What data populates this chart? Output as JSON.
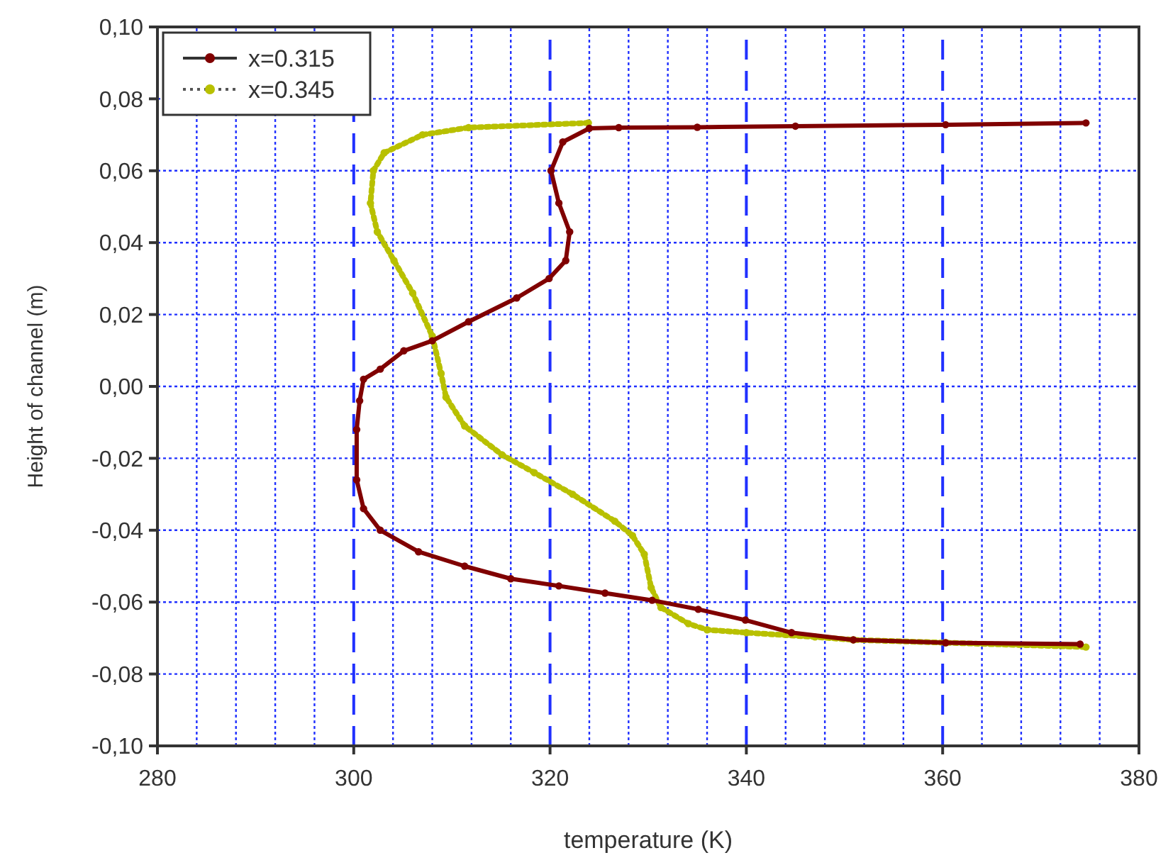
{
  "chart_data": {
    "type": "line",
    "xlabel": "temperature (K)",
    "ylabel": "Height of channel (m)",
    "xlim": [
      280,
      380
    ],
    "ylim": [
      -0.1,
      0.1
    ],
    "xticks": [
      280,
      {
        "value": 284,
        "label": null
      },
      {
        "value": 288,
        "label": null
      },
      {
        "value": 292,
        "label": null
      },
      {
        "value": 296,
        "label": null
      },
      300,
      {
        "value": 304,
        "label": null
      },
      {
        "value": 308,
        "label": null
      },
      {
        "value": 312,
        "label": null
      },
      {
        "value": 316,
        "label": null
      },
      320,
      {
        "value": 324,
        "label": null
      },
      {
        "value": 328,
        "label": null
      },
      {
        "value": 332,
        "label": null
      },
      {
        "value": 336,
        "label": null
      },
      340,
      {
        "value": 344,
        "label": null
      },
      {
        "value": 348,
        "label": null
      },
      {
        "value": 352,
        "label": null
      },
      {
        "value": 356,
        "label": null
      },
      360,
      {
        "value": 364,
        "label": null
      },
      {
        "value": 368,
        "label": null
      },
      {
        "value": 372,
        "label": null
      },
      {
        "value": 376,
        "label": null
      },
      380
    ],
    "yticks": [
      {
        "value": -0.1,
        "label": "-0,10"
      },
      {
        "value": -0.08,
        "label": "-0,08"
      },
      {
        "value": -0.06,
        "label": "-0,06"
      },
      {
        "value": -0.04,
        "label": "-0,04"
      },
      {
        "value": -0.02,
        "label": "-0,02"
      },
      {
        "value": 0,
        "label": "0,00"
      },
      {
        "value": 0.02,
        "label": "0,02"
      },
      {
        "value": 0.04,
        "label": "0,04"
      },
      {
        "value": 0.06,
        "label": "0,06"
      },
      {
        "value": 0.08,
        "label": "0,08"
      },
      {
        "value": 0.1,
        "label": "0,10"
      }
    ],
    "grid": true,
    "legend": "top left",
    "marker": "circle",
    "series": [
      {
        "name": "x=0.315",
        "color": "#800000",
        "line_style": "solid",
        "x": [
          374.6,
          360.3,
          345,
          335,
          327,
          324,
          321.3,
          320.1,
          320.9,
          322,
          321.6,
          319.9,
          316.6,
          311.7,
          308,
          305.1,
          302.7,
          301,
          300.6,
          300.3,
          300.3,
          301,
          302.7,
          306.6,
          311.3,
          316,
          320.9,
          325.6,
          330.4,
          335.1,
          339.9,
          344.6,
          350.9,
          360.3,
          374
        ],
        "values": [
          0.0733,
          0.0728,
          0.0724,
          0.0721,
          0.072,
          0.0718,
          0.068,
          0.06,
          0.051,
          0.043,
          0.035,
          0.03,
          0.0246,
          0.018,
          0.0127,
          0.0099,
          0.0048,
          0.002,
          -0.004,
          -0.012,
          -0.026,
          -0.034,
          -0.04,
          -0.046,
          -0.05,
          -0.0535,
          -0.0555,
          -0.0575,
          -0.0595,
          -0.062,
          -0.065,
          -0.0685,
          -0.0705,
          -0.0713,
          -0.0717
        ]
      },
      {
        "name": "x=0.345",
        "color": "#b8c000",
        "line_style": "dotted",
        "x": [
          323.9,
          311.7,
          307,
          303.1,
          302,
          301.7,
          302.4,
          304.1,
          306,
          308,
          308.9,
          309.4,
          311.3,
          315.1,
          318.4,
          322.3,
          326.6,
          328.4,
          329.6,
          330.3,
          331.3,
          334.1,
          336,
          340,
          347,
          350.9,
          360.3,
          374.6
        ],
        "values": [
          0.0733,
          0.072,
          0.07,
          0.065,
          0.06,
          0.051,
          0.043,
          0.035,
          0.026,
          0.014,
          0.0036,
          -0.003,
          -0.011,
          -0.019,
          -0.024,
          -0.03,
          -0.0375,
          -0.0415,
          -0.0467,
          -0.056,
          -0.0615,
          -0.066,
          -0.0677,
          -0.0685,
          -0.0697,
          -0.0705,
          -0.0713,
          -0.0725
        ]
      }
    ]
  }
}
